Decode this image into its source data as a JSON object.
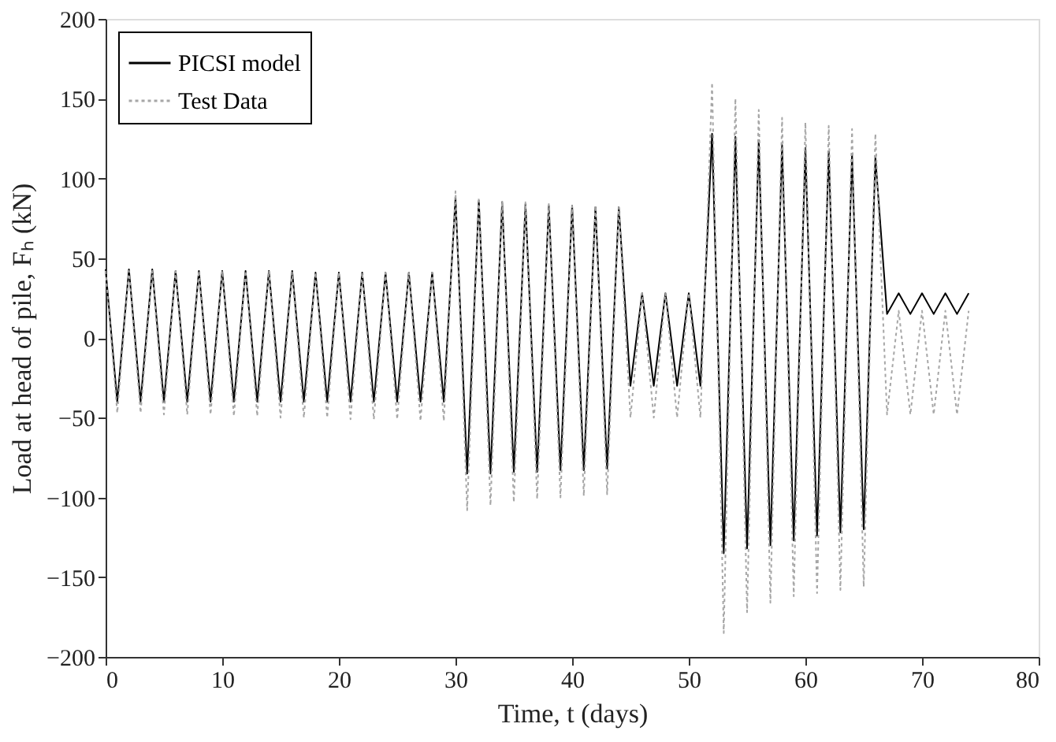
{
  "chart_data": {
    "type": "line",
    "xlabel": "Time,  t (days)",
    "ylabel": "Load at head of pile,  Fₕ  (kN)",
    "x": [
      0,
      1,
      2,
      3,
      4,
      5,
      6,
      7,
      8,
      9,
      10,
      11,
      12,
      13,
      14,
      15,
      16,
      17,
      18,
      19,
      20,
      21,
      22,
      23,
      24,
      25,
      26,
      27,
      28,
      29,
      30,
      31,
      32,
      33,
      34,
      35,
      36,
      37,
      38,
      39,
      40,
      41,
      42,
      43,
      44,
      45,
      46,
      47,
      48,
      49,
      50,
      51,
      52,
      53,
      54,
      55,
      56,
      57,
      58,
      59,
      60,
      61,
      62,
      63,
      64,
      65,
      66,
      67,
      68,
      69,
      70,
      71,
      72,
      73,
      74
    ],
    "series": [
      {
        "name": "PICSI model",
        "color": "#000000",
        "line_style": "solid",
        "values": [
          43,
          -40,
          43,
          -40,
          43,
          -40,
          42,
          -40,
          42,
          -40,
          42,
          -40,
          42,
          -40,
          42,
          -40,
          42,
          -40,
          41,
          -40,
          41,
          -40,
          41,
          -40,
          41,
          -40,
          41,
          -40,
          41,
          -40,
          88,
          -85,
          86,
          -85,
          85,
          -84,
          84,
          -84,
          83,
          -83,
          83,
          -83,
          82,
          -82,
          82,
          -30,
          28,
          -30,
          28,
          -30,
          28,
          -30,
          128,
          -135,
          126,
          -132,
          124,
          -130,
          121,
          -127,
          119,
          -124,
          117,
          -122,
          115,
          -120,
          113,
          15,
          28,
          15,
          28,
          15,
          28,
          15,
          28
        ]
      },
      {
        "name": "Test Data",
        "color": "#a6a6a6",
        "line_style": "dotted",
        "values": [
          42,
          -47,
          42,
          -47,
          42,
          -48,
          42,
          -48,
          42,
          -48,
          42,
          -49,
          42,
          -49,
          42,
          -50,
          41,
          -50,
          41,
          -50,
          41,
          -51,
          41,
          -51,
          41,
          -51,
          41,
          -52,
          41,
          -52,
          92,
          -108,
          88,
          -105,
          86,
          -103,
          85,
          -101,
          84,
          -100,
          83,
          -99,
          83,
          -98,
          82,
          -50,
          28,
          -50,
          28,
          -50,
          28,
          -50,
          160,
          -185,
          150,
          -172,
          143,
          -166,
          138,
          -162,
          135,
          -160,
          133,
          -158,
          131,
          -156,
          128,
          -48,
          17,
          -48,
          17,
          -48,
          17,
          -48,
          17
        ]
      }
    ],
    "xlim": [
      0,
      80
    ],
    "xticks": [
      0,
      10,
      20,
      30,
      40,
      50,
      60,
      70,
      80
    ],
    "ylim": [
      -200,
      200
    ],
    "yticks": [
      -200,
      -150,
      -100,
      -50,
      0,
      50,
      100,
      150,
      200
    ],
    "grid": false,
    "legend": "top left"
  }
}
